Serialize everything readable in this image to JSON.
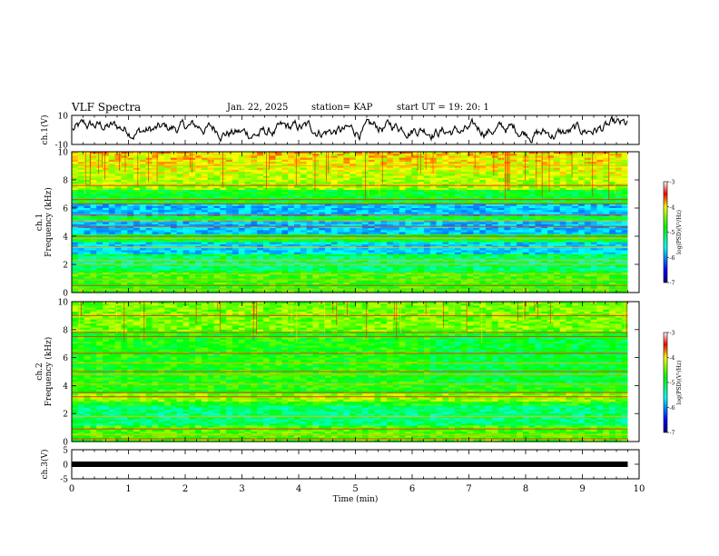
{
  "header": {
    "title": "VLF Spectra",
    "date": "Jan. 22, 2025",
    "station": "station= KAP",
    "start": "start  UT =  19: 20: 1"
  },
  "chart_data": [
    {
      "id": "ch1-waveform",
      "type": "line",
      "ylabel": "ch.1(V)",
      "ylim": [
        -10,
        10
      ],
      "yticks": [
        "10",
        "-10"
      ],
      "xlim": [
        0,
        10
      ]
    },
    {
      "id": "ch1-spectrogram",
      "type": "heatmap",
      "ylabel_top": "ch.1",
      "ylabel": "Frequency (kHz)",
      "ylim": [
        0,
        10
      ],
      "yticks": [
        "0",
        "2",
        "4",
        "6",
        "8",
        "10"
      ],
      "xlim": [
        0,
        10
      ],
      "colorbar": {
        "label": "log(PSD)(V²/Hz)",
        "range": [
          -7,
          -3
        ],
        "ticks": [
          "-3",
          "-4",
          "-5",
          "-6",
          "-7"
        ]
      }
    },
    {
      "id": "ch2-spectrogram",
      "type": "heatmap",
      "ylabel_top": "ch.2",
      "ylabel": "Frequency (kHz)",
      "ylim": [
        0,
        10
      ],
      "yticks": [
        "0",
        "2",
        "4",
        "6",
        "8",
        "10"
      ],
      "xlim": [
        0,
        10
      ],
      "colorbar": {
        "label": "log(PSD)(V²/Hz)",
        "range": [
          -7,
          -3
        ],
        "ticks": [
          "-3",
          "-4",
          "-5",
          "-6",
          "-7"
        ]
      }
    },
    {
      "id": "ch3-signal",
      "type": "line",
      "ylabel": "ch.3(V)",
      "ylim": [
        -5,
        5
      ],
      "yticks": [
        "5",
        "0",
        "-5"
      ],
      "level": 0,
      "xlim": [
        0,
        10
      ],
      "xticks": [
        "0",
        "1",
        "2",
        "3",
        "4",
        "5",
        "6",
        "7",
        "8",
        "9",
        "10"
      ],
      "xlabel": "Time (min)",
      "data_end": 9.8
    }
  ]
}
